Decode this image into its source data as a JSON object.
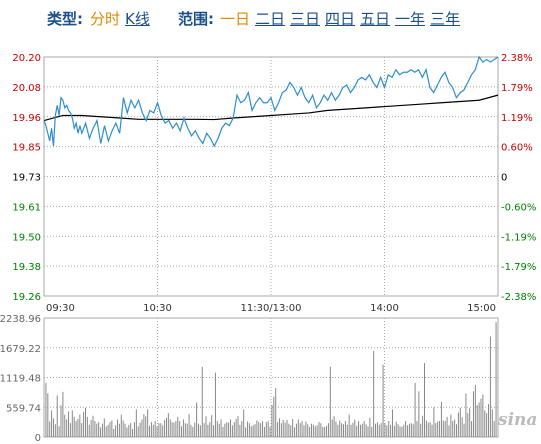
{
  "toolbar": {
    "type_label": "类型:",
    "type_tabs": [
      "分时",
      "K线"
    ],
    "range_label": "范围:",
    "range_tabs": [
      "一日",
      "二日",
      "三日",
      "四日",
      "五日",
      "一年",
      "三年"
    ]
  },
  "watermark": "sina",
  "colors": {
    "price": "#2f8ec9",
    "average": "#000000",
    "up": "#cc0000",
    "down": "#008000",
    "grid": "#aaaaaa",
    "volume": "#888888"
  },
  "chart_data": [
    {
      "type": "line",
      "y_ticks_left": [
        "20.20",
        "20.08",
        "19.96",
        "19.85",
        "19.73",
        "19.61",
        "19.50",
        "19.38",
        "19.26"
      ],
      "y_ticks_right": [
        "2.38%",
        "1.79%",
        "1.19%",
        "0.60%",
        "0",
        "-0.60%",
        "-1.19%",
        "-1.79%",
        "-2.38%"
      ],
      "x_ticks": [
        "09:30",
        "10:30",
        "11:30/13:00",
        "14:00",
        "15:00"
      ],
      "ylim": [
        19.26,
        20.2
      ],
      "x_range": [
        0,
        240
      ],
      "grid": "dotted",
      "series": [
        {
          "x": [
            0,
            1,
            2,
            3,
            4,
            5,
            6,
            7,
            8,
            9,
            10,
            11,
            12,
            13,
            14,
            15,
            16,
            17,
            18,
            19,
            20,
            22,
            24,
            26,
            28,
            30,
            32,
            34,
            36,
            38,
            40,
            42,
            44,
            46,
            48,
            50,
            52,
            54,
            56,
            58,
            60,
            62,
            64,
            66,
            68,
            70,
            72,
            74,
            76,
            78,
            80,
            82,
            84,
            86,
            88,
            90,
            92,
            94,
            96,
            98,
            100,
            102,
            104,
            106,
            108,
            110,
            112,
            114,
            116,
            118,
            120,
            122,
            124,
            126,
            128,
            130,
            132,
            134,
            136,
            138,
            140,
            142,
            144,
            146,
            148,
            150,
            152,
            154,
            156,
            158,
            160,
            162,
            164,
            166,
            168,
            170,
            172,
            174,
            176,
            178,
            180,
            182,
            184,
            186,
            188,
            190,
            192,
            194,
            196,
            198,
            200,
            202,
            204,
            206,
            208,
            210,
            212,
            214,
            216,
            218,
            220,
            222,
            224,
            226,
            228,
            230,
            232,
            234,
            236,
            238,
            240
          ],
          "y": [
            19.95,
            19.93,
            19.9,
            19.87,
            19.92,
            19.85,
            19.97,
            20.01,
            19.97,
            20.04,
            20.03,
            20.0,
            20.01,
            19.99,
            19.98,
            19.96,
            19.92,
            19.94,
            19.9,
            19.93,
            19.9,
            19.94,
            19.88,
            19.92,
            19.95,
            19.86,
            19.93,
            19.87,
            19.91,
            19.94,
            19.9,
            20.04,
            19.98,
            20.03,
            20.0,
            20.03,
            19.98,
            19.95,
            19.99,
            19.98,
            20.02,
            19.97,
            19.94,
            19.95,
            19.92,
            19.94,
            19.91,
            19.96,
            19.92,
            19.89,
            19.91,
            19.88,
            19.86,
            19.9,
            19.88,
            19.85,
            19.88,
            19.92,
            19.94,
            19.93,
            19.96,
            20.05,
            20.02,
            20.03,
            20.06,
            19.99,
            20.02,
            20.04,
            20.02,
            20.02,
            20.04,
            19.99,
            20.02,
            20.06,
            20.07,
            20.1,
            20.08,
            20.05,
            20.08,
            20.04,
            20.02,
            20.05,
            20.0,
            20.02,
            20.05,
            20.03,
            20.06,
            20.03,
            20.05,
            20.08,
            20.09,
            20.06,
            20.08,
            20.11,
            20.12,
            20.11,
            20.13,
            20.1,
            20.08,
            20.12,
            20.08,
            20.13,
            20.12,
            20.15,
            20.13,
            20.14,
            20.14,
            20.15,
            20.14,
            20.15,
            20.12,
            20.15,
            20.08,
            20.06,
            20.09,
            20.12,
            20.14,
            20.1,
            20.08,
            20.04,
            20.06,
            20.07,
            20.1,
            20.13,
            20.15,
            20.2,
            20.18,
            20.19,
            20.18,
            20.19,
            20.2
          ]
        },
        {
          "x": [
            0,
            10,
            20,
            30,
            40,
            50,
            60,
            70,
            80,
            90,
            100,
            110,
            120,
            130,
            140,
            150,
            160,
            170,
            180,
            190,
            200,
            210,
            220,
            230,
            240
          ],
          "y": [
            19.95,
            19.97,
            19.97,
            19.965,
            19.96,
            19.955,
            19.955,
            19.955,
            19.955,
            19.954,
            19.96,
            19.965,
            19.97,
            19.975,
            19.98,
            19.99,
            19.995,
            20.0,
            20.005,
            20.01,
            20.015,
            20.02,
            20.025,
            20.03,
            20.05
          ]
        }
      ]
    },
    {
      "type": "bar",
      "y_ticks": [
        "2238.96",
        "1679.22",
        "1119.48",
        "559.74",
        "0"
      ],
      "ylim": [
        0,
        2238.96
      ],
      "values": [
        1020,
        820,
        290,
        500,
        350,
        240,
        780,
        200,
        600,
        850,
        420,
        330,
        480,
        260,
        500,
        380,
        300,
        340,
        420,
        260,
        470,
        550,
        380,
        230,
        320,
        400,
        300,
        250,
        280,
        180,
        250,
        350,
        200,
        230,
        280,
        310,
        150,
        220,
        330,
        250,
        420,
        310,
        250,
        180,
        230,
        260,
        150,
        280,
        520,
        200,
        270,
        330,
        430,
        390,
        520,
        210,
        280,
        230,
        300,
        200,
        260,
        260,
        220,
        320,
        360,
        450,
        330,
        280,
        270,
        300,
        380,
        300,
        200,
        330,
        260,
        250,
        430,
        230,
        190,
        270,
        650,
        250,
        220,
        1320,
        260,
        390,
        230,
        280,
        410,
        220,
        1210,
        300,
        250,
        330,
        190,
        250,
        280,
        270,
        330,
        220,
        280,
        340,
        390,
        230,
        300,
        520,
        180,
        290,
        260,
        200,
        220,
        240,
        310,
        280,
        260,
        300,
        190,
        280,
        300,
        190,
        600,
        760,
        920,
        280,
        350,
        260,
        320,
        270,
        320,
        250,
        220,
        340,
        180,
        250,
        330,
        260,
        300,
        220,
        290,
        240,
        190,
        250,
        230,
        200,
        220,
        280,
        260,
        190,
        190,
        210,
        260,
        1320,
        330,
        390,
        290,
        230,
        310,
        260,
        240,
        300,
        230,
        420,
        230,
        270,
        330,
        210,
        300,
        230,
        250,
        300,
        240,
        200,
        360,
        190,
        1620,
        250,
        280,
        230,
        260,
        1360,
        260,
        220,
        300,
        230,
        520,
        210,
        290,
        240,
        200,
        190,
        230,
        300,
        220,
        250,
        260,
        240,
        1020,
        300,
        860,
        250,
        400,
        1390,
        310,
        270,
        280,
        230,
        560,
        260,
        290,
        300,
        660,
        310,
        300,
        380,
        220,
        420,
        300,
        330,
        240,
        460,
        550,
        370,
        250,
        820,
        450,
        540,
        300,
        860,
        980,
        600,
        650,
        720,
        800,
        500,
        450,
        620,
        1890,
        520,
        300,
        2160
      ]
    }
  ]
}
